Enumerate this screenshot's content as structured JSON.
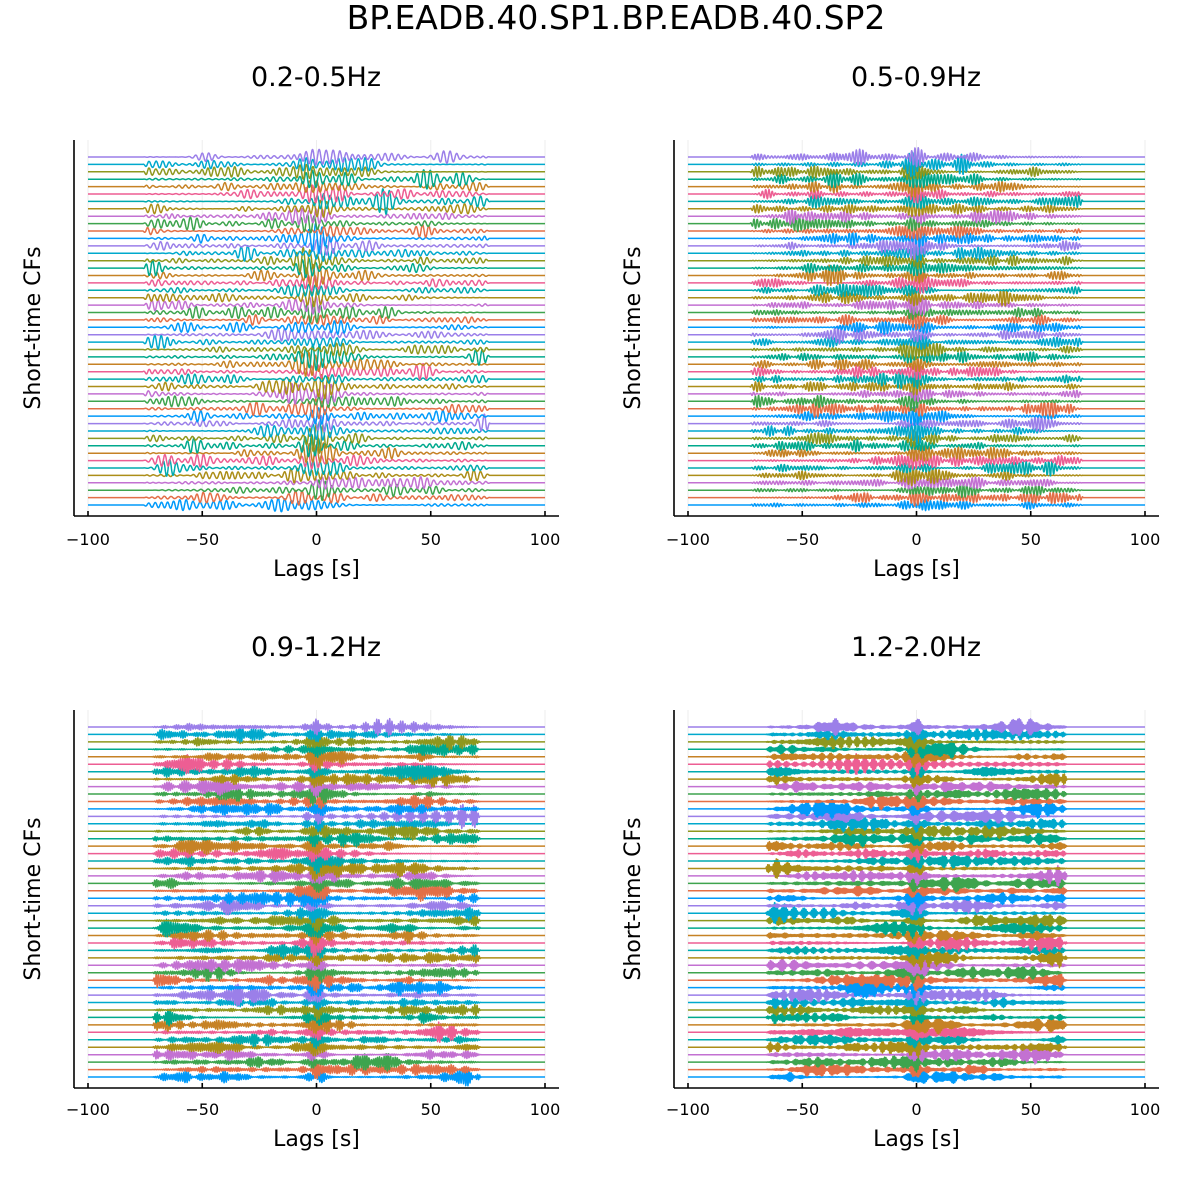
{
  "figure": {
    "suptitle": "BP.EADB.40.SP1.BP.EADB.40.SP2"
  },
  "colors": [
    "#009AFA",
    "#E36F47",
    "#3EA44E",
    "#C371D2",
    "#AC8E18",
    "#00AAAE",
    "#ED5E93",
    "#C68225",
    "#00A98D",
    "#8E971E",
    "#00A9CD",
    "#9B7FE9"
  ],
  "chart_data": [
    {
      "type": "line",
      "title": "0.2-0.5Hz",
      "xlabel": "Lags [s]",
      "ylabel": "Short-time CFs",
      "xlim": [
        -100,
        100
      ],
      "xticks": [
        -100,
        -50,
        0,
        50,
        100
      ],
      "xtick_labels": [
        "−100",
        "−50",
        "0",
        "50",
        "100"
      ],
      "n_traces": 48,
      "signal_window": [
        -76,
        76
      ],
      "dominant_frequency_hz": 0.35,
      "grid": true,
      "legend": "none"
    },
    {
      "type": "line",
      "title": "0.5-0.9Hz",
      "xlabel": "Lags [s]",
      "ylabel": "Short-time CFs",
      "xlim": [
        -100,
        100
      ],
      "xticks": [
        -100,
        -50,
        0,
        50,
        100
      ],
      "xtick_labels": [
        "−100",
        "−50",
        "0",
        "50",
        "100"
      ],
      "n_traces": 48,
      "signal_window": [
        -73,
        73
      ],
      "dominant_frequency_hz": 0.7,
      "grid": true,
      "legend": "none"
    },
    {
      "type": "line",
      "title": "0.9-1.2Hz",
      "xlabel": "Lags [s]",
      "ylabel": "Short-time CFs",
      "xlim": [
        -100,
        100
      ],
      "xticks": [
        -100,
        -50,
        0,
        50,
        100
      ],
      "xtick_labels": [
        "−100",
        "−50",
        "0",
        "50",
        "100"
      ],
      "n_traces": 48,
      "signal_window": [
        -72,
        72
      ],
      "dominant_frequency_hz": 1.05,
      "grid": true,
      "legend": "none"
    },
    {
      "type": "line",
      "title": "1.2-2.0Hz",
      "xlabel": "Lags [s]",
      "ylabel": "Short-time CFs",
      "xlim": [
        -100,
        100
      ],
      "xticks": [
        -100,
        -50,
        0,
        50,
        100
      ],
      "xtick_labels": [
        "−100",
        "−50",
        "0",
        "50",
        "100"
      ],
      "n_traces": 48,
      "signal_window": [
        -66,
        66
      ],
      "dominant_frequency_hz": 1.6,
      "grid": true,
      "legend": "none"
    }
  ]
}
